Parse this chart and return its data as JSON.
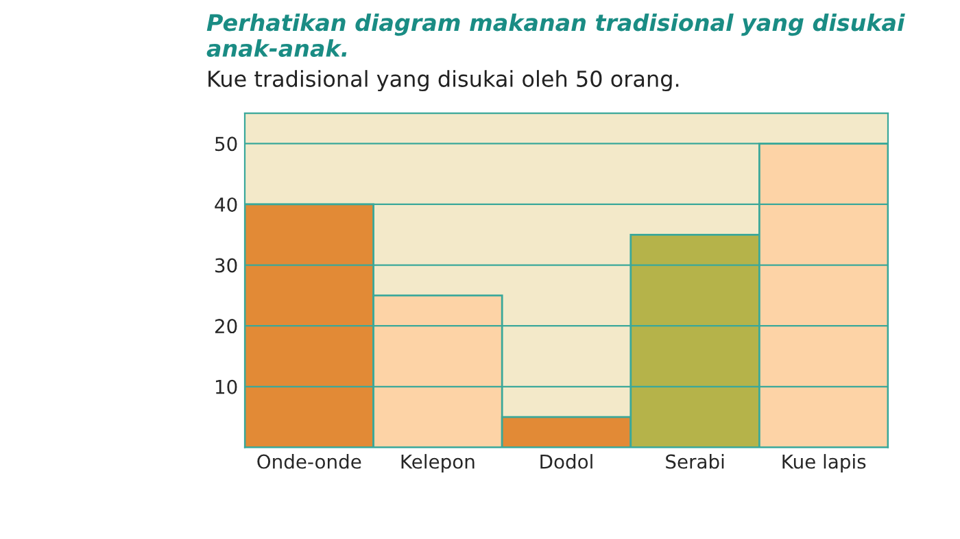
{
  "chart_data": {
    "type": "bar",
    "title": "Perhatikan diagram makanan tradisional yang disukai anak-anak.",
    "subtitle": "Kue tradisional yang disukai oleh 50 orang.",
    "categories": [
      "Onde-onde",
      "Kelepon",
      "Dodol",
      "Serabi",
      "Kue lapis"
    ],
    "values": [
      40,
      25,
      5,
      35,
      50
    ],
    "colors": [
      "#e28a36",
      "#fdd3a6",
      "#e28a36",
      "#b5b34a",
      "#fdd3a6"
    ],
    "ylim": [
      0,
      55
    ],
    "yticks": [
      10,
      20,
      30,
      40,
      50
    ],
    "grid": "y"
  }
}
